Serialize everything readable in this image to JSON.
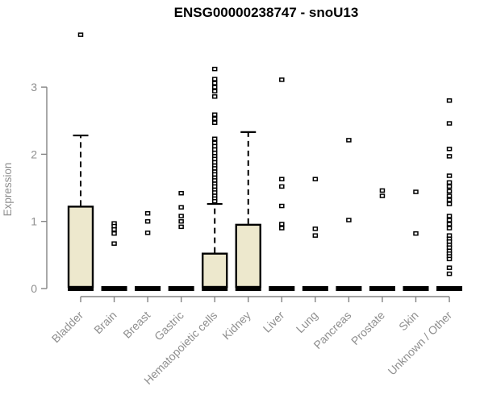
{
  "chart_data": {
    "type": "boxplot",
    "title": "ENSG00000238747 - snoU13",
    "ylabel": "Expression",
    "xlabel": "",
    "ylim": [
      0,
      3.9
    ],
    "yticks": [
      0,
      1,
      2,
      3
    ],
    "grid": false,
    "legend": false,
    "categories": [
      "Bladder",
      "Brain",
      "Breast",
      "Gastric",
      "Hematopoietic cells",
      "Kidney",
      "Liver",
      "Lung",
      "Pancreas",
      "Prostate",
      "Skin",
      "Unknown / Other"
    ],
    "colors": {
      "box_fill": "#ede8cd",
      "box_border": "#000000",
      "axis": "#848484",
      "tick_label": "#8f8f8f",
      "title": "#000000"
    },
    "boxes": [
      {
        "category": "Bladder",
        "q1": 0,
        "median": 0,
        "q3": 1.22,
        "whisker_low": 0,
        "whisker_high": 2.28,
        "outliers": [
          3.78
        ]
      },
      {
        "category": "Brain",
        "q1": 0,
        "median": 0,
        "q3": 0,
        "whisker_low": 0,
        "whisker_high": 0,
        "outliers": [
          0.97,
          0.93,
          0.88,
          0.82,
          0.67
        ]
      },
      {
        "category": "Breast",
        "q1": 0,
        "median": 0,
        "q3": 0,
        "whisker_low": 0,
        "whisker_high": 0,
        "outliers": [
          1.12,
          1.0,
          0.83
        ]
      },
      {
        "category": "Gastric",
        "q1": 0,
        "median": 0,
        "q3": 0,
        "whisker_low": 0,
        "whisker_high": 0,
        "outliers": [
          1.42,
          1.21,
          1.08,
          1.0,
          0.92
        ]
      },
      {
        "category": "Hematopoietic cells",
        "q1": 0,
        "median": 0,
        "q3": 0.52,
        "whisker_low": 0,
        "whisker_high": 1.26,
        "outliers": [
          3.27,
          3.12,
          3.06,
          3.0,
          2.94,
          2.86,
          2.59,
          2.53,
          2.47,
          2.23,
          2.17,
          2.12,
          2.07,
          2.02,
          1.97,
          1.93,
          1.88,
          1.83,
          1.79,
          1.74,
          1.7,
          1.65,
          1.61,
          1.56,
          1.52,
          1.47,
          1.43,
          1.38,
          1.34,
          1.3
        ]
      },
      {
        "category": "Kidney",
        "q1": 0,
        "median": 0,
        "q3": 0.95,
        "whisker_low": 0,
        "whisker_high": 2.33,
        "outliers": []
      },
      {
        "category": "Liver",
        "q1": 0,
        "median": 0,
        "q3": 0,
        "whisker_low": 0,
        "whisker_high": 0,
        "outliers": [
          3.11,
          1.63,
          1.52,
          1.23,
          0.96,
          0.9
        ]
      },
      {
        "category": "Lung",
        "q1": 0,
        "median": 0,
        "q3": 0,
        "whisker_low": 0,
        "whisker_high": 0,
        "outliers": [
          1.63,
          0.89,
          0.79
        ]
      },
      {
        "category": "Pancreas",
        "q1": 0,
        "median": 0,
        "q3": 0,
        "whisker_low": 0,
        "whisker_high": 0,
        "outliers": [
          2.21,
          1.02
        ]
      },
      {
        "category": "Prostate",
        "q1": 0,
        "median": 0,
        "q3": 0,
        "whisker_low": 0,
        "whisker_high": 0,
        "outliers": [
          1.46,
          1.38
        ]
      },
      {
        "category": "Skin",
        "q1": 0,
        "median": 0,
        "q3": 0,
        "whisker_low": 0,
        "whisker_high": 0,
        "outliers": [
          1.44,
          0.82
        ]
      },
      {
        "category": "Unknown / Other",
        "q1": 0,
        "median": 0,
        "q3": 0,
        "whisker_low": 0,
        "whisker_high": 0,
        "outliers": [
          2.8,
          2.46,
          2.08,
          1.97,
          1.68,
          1.58,
          1.52,
          1.45,
          1.38,
          1.32,
          1.26,
          1.08,
          1.02,
          0.96,
          0.9,
          0.79,
          0.74,
          0.7,
          0.65,
          0.61,
          0.56,
          0.52,
          0.48,
          0.44,
          0.31,
          0.22
        ]
      }
    ]
  }
}
